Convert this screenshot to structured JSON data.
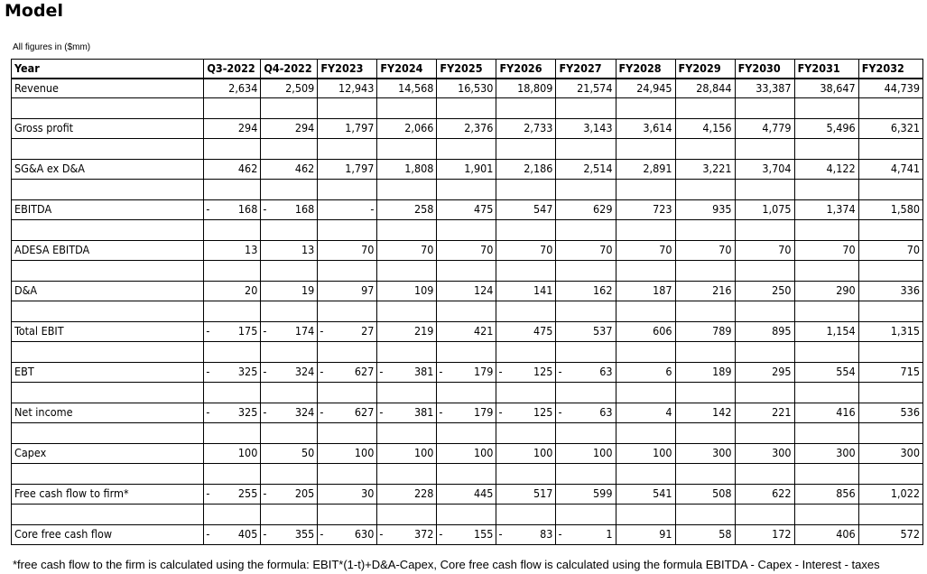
{
  "title": "Model",
  "units_note": "All figures in ($mm)",
  "columns": [
    "Year",
    "Q3-2022",
    "Q4-2022",
    "FY2023",
    "FY2024",
    "FY2025",
    "FY2026",
    "FY2027",
    "FY2028",
    "FY2029",
    "FY2030",
    "FY2031",
    "FY2032"
  ],
  "rows": [
    {
      "label": "Revenue",
      "values": [
        "2,634",
        "2,509",
        "12,943",
        "14,568",
        "16,530",
        "18,809",
        "21,574",
        "24,945",
        "28,844",
        "33,387",
        "38,647",
        "44,739"
      ],
      "neg": [
        false,
        false,
        false,
        false,
        false,
        false,
        false,
        false,
        false,
        false,
        false,
        false
      ]
    },
    {
      "label": "Gross profit",
      "values": [
        "294",
        "294",
        "1,797",
        "2,066",
        "2,376",
        "2,733",
        "3,143",
        "3,614",
        "4,156",
        "4,779",
        "5,496",
        "6,321"
      ],
      "neg": [
        false,
        false,
        false,
        false,
        false,
        false,
        false,
        false,
        false,
        false,
        false,
        false
      ]
    },
    {
      "label": "SG&A ex D&A",
      "values": [
        "462",
        "462",
        "1,797",
        "1,808",
        "1,901",
        "2,186",
        "2,514",
        "2,891",
        "3,221",
        "3,704",
        "4,122",
        "4,741"
      ],
      "neg": [
        false,
        false,
        false,
        false,
        false,
        false,
        false,
        false,
        false,
        false,
        false,
        false
      ]
    },
    {
      "label": "EBITDA",
      "values": [
        "168",
        "168",
        "-",
        "258",
        "475",
        "547",
        "629",
        "723",
        "935",
        "1,075",
        "1,374",
        "1,580"
      ],
      "neg": [
        true,
        true,
        false,
        false,
        false,
        false,
        false,
        false,
        false,
        false,
        false,
        false
      ]
    },
    {
      "label": "ADESA EBITDA",
      "values": [
        "13",
        "13",
        "70",
        "70",
        "70",
        "70",
        "70",
        "70",
        "70",
        "70",
        "70",
        "70"
      ],
      "neg": [
        false,
        false,
        false,
        false,
        false,
        false,
        false,
        false,
        false,
        false,
        false,
        false
      ]
    },
    {
      "label": "D&A",
      "values": [
        "20",
        "19",
        "97",
        "109",
        "124",
        "141",
        "162",
        "187",
        "216",
        "250",
        "290",
        "336"
      ],
      "neg": [
        false,
        false,
        false,
        false,
        false,
        false,
        false,
        false,
        false,
        false,
        false,
        false
      ]
    },
    {
      "label": "Total EBIT",
      "values": [
        "175",
        "174",
        "27",
        "219",
        "421",
        "475",
        "537",
        "606",
        "789",
        "895",
        "1,154",
        "1,315"
      ],
      "neg": [
        true,
        true,
        true,
        false,
        false,
        false,
        false,
        false,
        false,
        false,
        false,
        false
      ]
    },
    {
      "label": "EBT",
      "values": [
        "325",
        "324",
        "627",
        "381",
        "179",
        "125",
        "63",
        "6",
        "189",
        "295",
        "554",
        "715"
      ],
      "neg": [
        true,
        true,
        true,
        true,
        true,
        true,
        true,
        false,
        false,
        false,
        false,
        false
      ]
    },
    {
      "label": "Net income",
      "values": [
        "325",
        "324",
        "627",
        "381",
        "179",
        "125",
        "63",
        "4",
        "142",
        "221",
        "416",
        "536"
      ],
      "neg": [
        true,
        true,
        true,
        true,
        true,
        true,
        true,
        false,
        false,
        false,
        false,
        false
      ]
    },
    {
      "label": "Capex",
      "values": [
        "100",
        "50",
        "100",
        "100",
        "100",
        "100",
        "100",
        "100",
        "300",
        "300",
        "300",
        "300"
      ],
      "neg": [
        false,
        false,
        false,
        false,
        false,
        false,
        false,
        false,
        false,
        false,
        false,
        false
      ]
    },
    {
      "label": "Free cash flow to firm*",
      "values": [
        "255",
        "205",
        "30",
        "228",
        "445",
        "517",
        "599",
        "541",
        "508",
        "622",
        "856",
        "1,022"
      ],
      "neg": [
        true,
        true,
        false,
        false,
        false,
        false,
        false,
        false,
        false,
        false,
        false,
        false
      ]
    },
    {
      "label": "Core free cash flow",
      "values": [
        "405",
        "355",
        "630",
        "372",
        "155",
        "83",
        "1",
        "91",
        "58",
        "172",
        "406",
        "572"
      ],
      "neg": [
        true,
        true,
        true,
        true,
        true,
        true,
        true,
        false,
        false,
        false,
        false,
        false
      ]
    }
  ],
  "footnote": "*free cash flow to the firm is calculated using the formula: EBIT*(1-t)+D&A-Capex, Core free cash flow is calculated using the formula EBITDA - Capex - Interest - taxes"
}
